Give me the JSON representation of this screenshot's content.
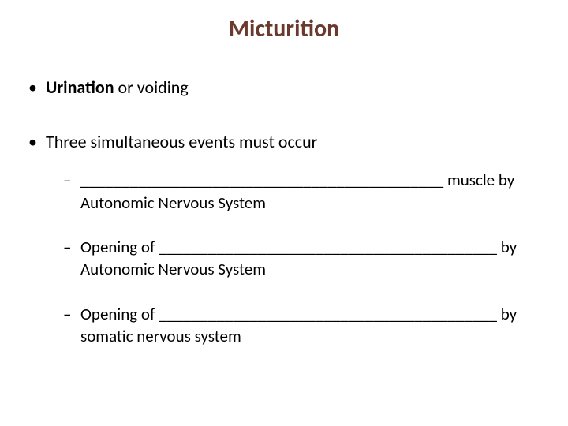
{
  "title": "Micturition",
  "bullets": {
    "b1_bold": "Urination",
    "b1_rest": " or voiding",
    "b2": "Three simultaneous events must occur",
    "sub1": "____________________________________________ muscle by Autonomic Nervous System",
    "sub2": "Opening of _________________________________________ by Autonomic Nervous System",
    "sub3": "Opening of _________________________________________ by somatic nervous system"
  },
  "colors": {
    "title": "#6b3a2e",
    "text": "#000000",
    "background": "#ffffff"
  }
}
